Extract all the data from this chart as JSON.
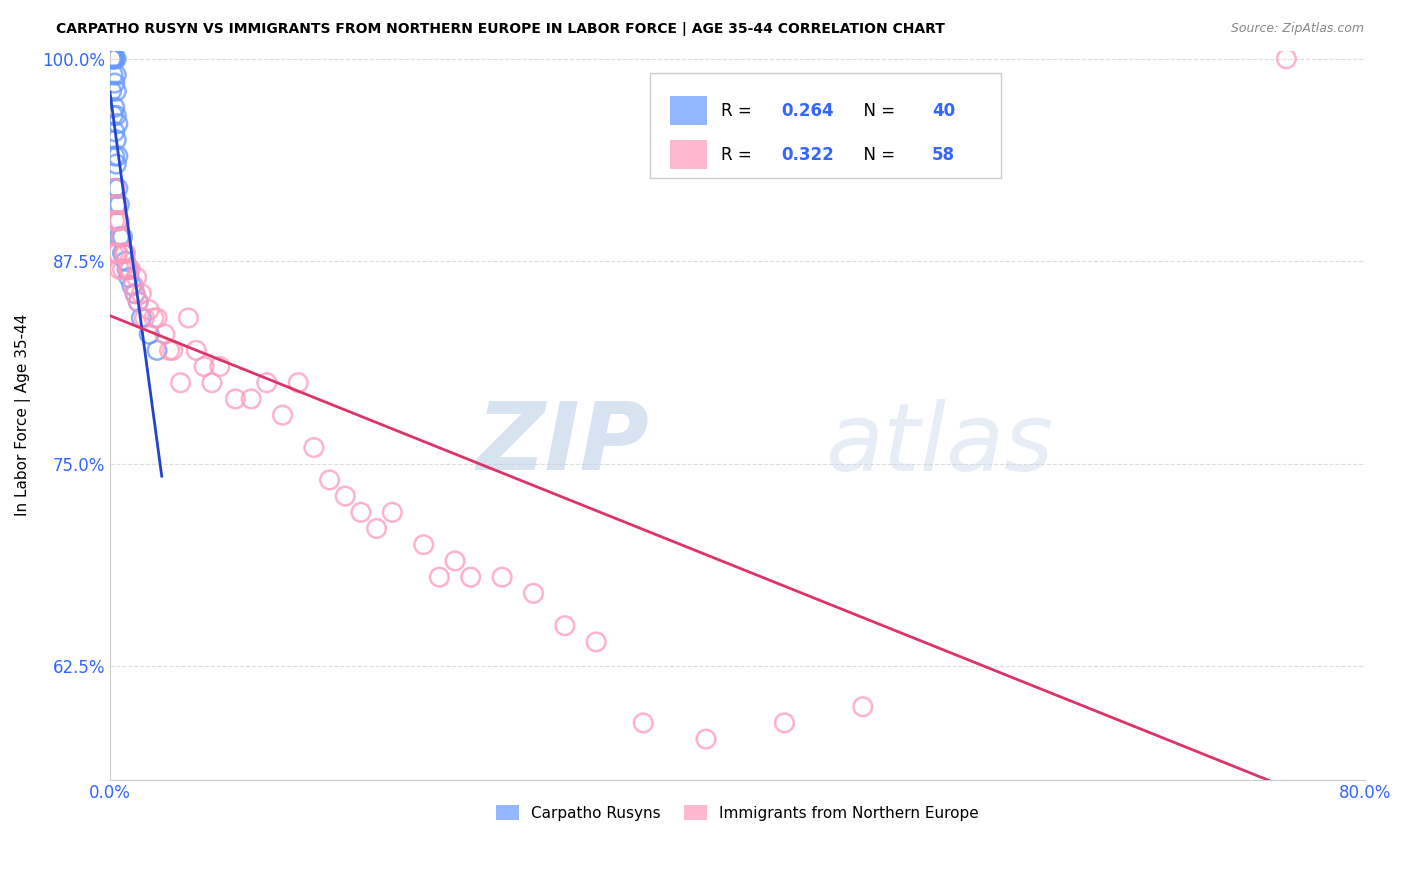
{
  "title": "CARPATHO RUSYN VS IMMIGRANTS FROM NORTHERN EUROPE IN LABOR FORCE | AGE 35-44 CORRELATION CHART",
  "source": "Source: ZipAtlas.com",
  "ylabel": "In Labor Force | Age 35-44",
  "xlim": [
    0.0,
    0.8
  ],
  "ylim": [
    0.555,
    1.005
  ],
  "xticks": [
    0.0,
    0.1,
    0.2,
    0.3,
    0.4,
    0.5,
    0.6,
    0.7,
    0.8
  ],
  "xticklabels": [
    "0.0%",
    "",
    "",
    "",
    "",
    "",
    "",
    "",
    "80.0%"
  ],
  "yticks": [
    0.625,
    0.75,
    0.875,
    1.0
  ],
  "yticklabels": [
    "62.5%",
    "75.0%",
    "87.5%",
    "100.0%"
  ],
  "blue_R": "0.264",
  "blue_N": "40",
  "pink_R": "0.322",
  "pink_N": "58",
  "blue_color": "#6699ff",
  "pink_color": "#ff99bb",
  "blue_line_color": "#2244cc",
  "pink_line_color": "#dd3366",
  "legend_label_blue": "Carpatho Rusyns",
  "legend_label_pink": "Immigrants from Northern Europe",
  "tick_color": "#3366ff",
  "watermark": "ZIPatlas",
  "blue_x": [
    0.001,
    0.001,
    0.001,
    0.002,
    0.002,
    0.002,
    0.002,
    0.003,
    0.003,
    0.003,
    0.003,
    0.003,
    0.003,
    0.003,
    0.004,
    0.004,
    0.004,
    0.004,
    0.004,
    0.004,
    0.004,
    0.005,
    0.005,
    0.005,
    0.005,
    0.006,
    0.006,
    0.007,
    0.008,
    0.008,
    0.009,
    0.01,
    0.011,
    0.012,
    0.014,
    0.016,
    0.018,
    0.02,
    0.025,
    0.03
  ],
  "blue_y": [
    1.0,
    1.0,
    0.98,
    1.0,
    1.0,
    0.99,
    0.965,
    1.0,
    1.0,
    0.985,
    0.97,
    0.955,
    0.94,
    0.92,
    1.0,
    0.99,
    0.98,
    0.965,
    0.95,
    0.935,
    0.91,
    0.96,
    0.94,
    0.92,
    0.9,
    0.91,
    0.89,
    0.89,
    0.89,
    0.88,
    0.88,
    0.875,
    0.87,
    0.865,
    0.86,
    0.855,
    0.85,
    0.84,
    0.83,
    0.82
  ],
  "pink_x": [
    0.002,
    0.003,
    0.003,
    0.004,
    0.004,
    0.005,
    0.005,
    0.006,
    0.006,
    0.007,
    0.008,
    0.009,
    0.01,
    0.011,
    0.012,
    0.013,
    0.015,
    0.016,
    0.017,
    0.018,
    0.02,
    0.022,
    0.025,
    0.028,
    0.03,
    0.035,
    0.038,
    0.04,
    0.045,
    0.05,
    0.055,
    0.06,
    0.065,
    0.07,
    0.08,
    0.09,
    0.1,
    0.11,
    0.12,
    0.13,
    0.14,
    0.15,
    0.16,
    0.17,
    0.18,
    0.2,
    0.21,
    0.22,
    0.23,
    0.25,
    0.27,
    0.29,
    0.31,
    0.34,
    0.38,
    0.43,
    0.48,
    0.75
  ],
  "pink_y": [
    0.88,
    0.92,
    0.9,
    0.91,
    0.88,
    0.9,
    0.88,
    0.9,
    0.87,
    0.89,
    0.87,
    0.88,
    0.88,
    0.87,
    0.87,
    0.87,
    0.86,
    0.855,
    0.865,
    0.85,
    0.855,
    0.84,
    0.845,
    0.84,
    0.84,
    0.83,
    0.82,
    0.82,
    0.8,
    0.84,
    0.82,
    0.81,
    0.8,
    0.81,
    0.79,
    0.79,
    0.8,
    0.78,
    0.8,
    0.76,
    0.74,
    0.73,
    0.72,
    0.71,
    0.72,
    0.7,
    0.68,
    0.69,
    0.68,
    0.68,
    0.67,
    0.65,
    0.64,
    0.59,
    0.58,
    0.59,
    0.6,
    1.0
  ],
  "background_color": "#ffffff",
  "grid_color": "#dddddd"
}
